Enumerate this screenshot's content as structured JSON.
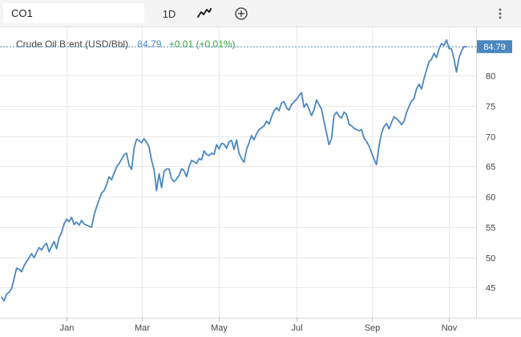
{
  "toolbar": {
    "symbol": "CO1",
    "interval": "1D",
    "chart_type_icon": "line-chart-icon",
    "add_icon": "plus-circle-icon",
    "menu_icon": "vertical-dots-icon"
  },
  "legend": {
    "name": "Crude Oil Brent (USD/Bbl)",
    "last": "84.79",
    "change": "+0.01 (+0.01%)"
  },
  "price_tag": "84.79",
  "colors": {
    "line": "#4a87c0",
    "tag": "#4a87c0",
    "positive": "#3ca23c",
    "grid": "#e8e8e8"
  },
  "chart_data": {
    "type": "line",
    "title": "Crude Oil Brent (USD/Bbl)",
    "xlabel": "",
    "ylabel": "",
    "ylim": [
      40,
      88
    ],
    "y_ticks": [
      45,
      50,
      55,
      60,
      65,
      70,
      75,
      80
    ],
    "x_tick_labels": [
      "Jan",
      "Mar",
      "May",
      "Jul",
      "Sep",
      "Nov"
    ],
    "x_ticks_index": [
      26,
      56,
      87,
      118,
      148,
      179
    ],
    "grid": true,
    "last_value": 84.79,
    "series": [
      {
        "name": "Crude Oil Brent (USD/Bbl)",
        "values": [
          43.4,
          42.8,
          43.9,
          44.2,
          44.8,
          46.5,
          48.2,
          48.0,
          47.6,
          48.6,
          49.3,
          49.9,
          50.6,
          49.9,
          50.8,
          51.6,
          51.2,
          51.9,
          52.3,
          50.9,
          51.8,
          52.6,
          51.4,
          53.2,
          54.1,
          55.5,
          56.3,
          55.9,
          56.6,
          55.4,
          55.8,
          55.3,
          56.1,
          55.5,
          55.3,
          55.1,
          55.0,
          57.0,
          58.3,
          59.5,
          60.6,
          61.0,
          62.0,
          63.3,
          62.8,
          63.9,
          64.9,
          65.5,
          66.2,
          66.9,
          67.2,
          65.2,
          64.5,
          68.0,
          69.5,
          69.3,
          68.9,
          69.6,
          69.0,
          68.2,
          66.0,
          64.5,
          61.0,
          63.8,
          61.5,
          64.2,
          64.6,
          64.6,
          63.0,
          62.5,
          62.9,
          63.5,
          64.6,
          64.3,
          63.3,
          65.0,
          66.0,
          65.8,
          65.5,
          66.3,
          66.1,
          67.6,
          67.0,
          66.8,
          67.2,
          67.0,
          68.6,
          67.9,
          68.8,
          68.7,
          68.0,
          69.1,
          69.3,
          67.8,
          69.4,
          67.2,
          66.3,
          65.7,
          67.8,
          68.9,
          70.1,
          69.4,
          70.4,
          71.1,
          71.4,
          71.7,
          72.5,
          72.0,
          73.2,
          74.2,
          74.7,
          74.2,
          75.5,
          75.7,
          74.7,
          74.3,
          75.2,
          75.7,
          76.1,
          76.7,
          77.2,
          74.8,
          75.4,
          74.5,
          73.4,
          74.4,
          76.0,
          75.2,
          74.5,
          72.4,
          70.5,
          68.6,
          69.6,
          73.4,
          74.0,
          73.3,
          73.0,
          74.0,
          73.6,
          72.0,
          71.7,
          71.3,
          71.1,
          70.9,
          71.1,
          69.7,
          69.1,
          68.4,
          67.3,
          66.2,
          65.3,
          68.4,
          70.5,
          71.6,
          72.1,
          71.2,
          72.3,
          73.2,
          72.9,
          72.5,
          71.9,
          72.4,
          73.9,
          74.9,
          75.8,
          76.2,
          77.8,
          78.6,
          77.8,
          79.5,
          80.9,
          82.3,
          82.7,
          83.7,
          83.0,
          84.4,
          85.3,
          85.0,
          85.9,
          84.5,
          84.4,
          82.8,
          80.6,
          82.9,
          84.1,
          84.78,
          84.79
        ]
      }
    ]
  }
}
